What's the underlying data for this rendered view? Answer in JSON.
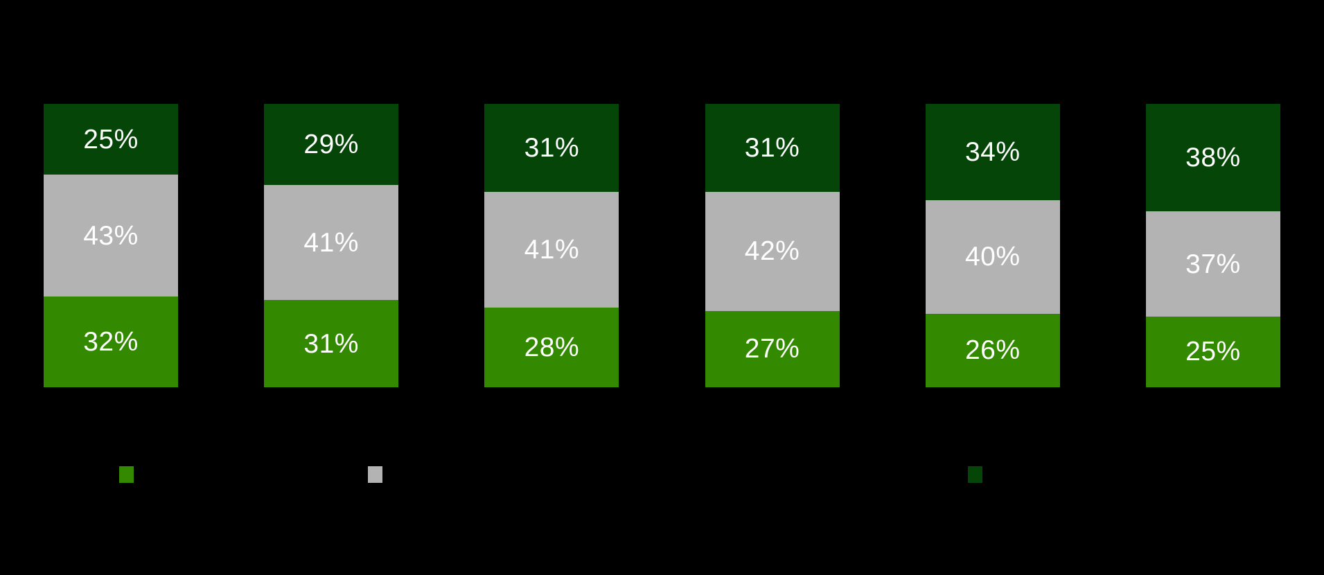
{
  "chart_data": {
    "type": "bar",
    "variant": "100-percent-stacked-column",
    "background": "#000000",
    "grid": false,
    "axes_visible": false,
    "title_visible": false,
    "category_labels_visible": false,
    "bar_count": 6,
    "categories": [
      "",
      "",
      "",
      "",
      "",
      ""
    ],
    "value_suffix": "%",
    "label_color": "#FFFFFF",
    "series": [
      {
        "name": "top-dark-green-segment",
        "color": "#064508",
        "values": [
          25,
          29,
          31,
          31,
          34,
          38
        ]
      },
      {
        "name": "middle-gray-segment",
        "color": "#B3B3B3",
        "values": [
          43,
          41,
          41,
          42,
          40,
          37
        ]
      },
      {
        "name": "bottom-green-segment",
        "color": "#338A00",
        "values": [
          32,
          31,
          28,
          27,
          26,
          25
        ]
      }
    ],
    "legend": {
      "position": "bottom",
      "labels_visible": false,
      "swatches": [
        {
          "name": "legend-swatch-green",
          "color": "#338A00"
        },
        {
          "name": "legend-swatch-gray",
          "color": "#B3B3B3"
        },
        {
          "name": "legend-swatch-dark-green",
          "color": "#064508"
        }
      ]
    }
  }
}
